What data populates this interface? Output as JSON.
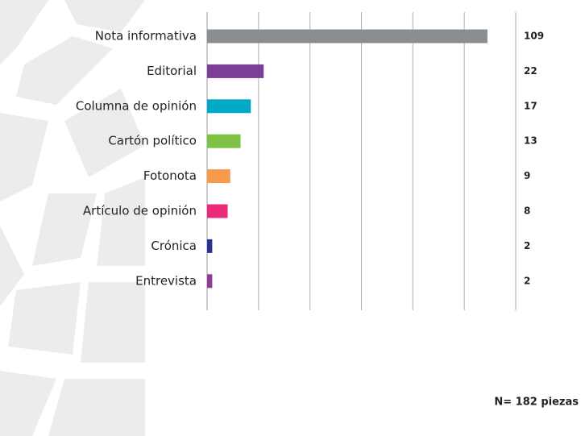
{
  "chart_data": {
    "type": "bar",
    "orientation": "horizontal",
    "categories": [
      "Nota informativa",
      "Editorial",
      "Columna de opinión",
      "Cartón político",
      "Fotonota",
      "Artículo de opinión",
      "Crónica",
      "Entrevista"
    ],
    "values": [
      109,
      22,
      17,
      13,
      9,
      8,
      2,
      2
    ],
    "colors": [
      "#8a8d91",
      "#7b3f98",
      "#00a9c6",
      "#7dc242",
      "#f79a4b",
      "#ec2a7b",
      "#2e3192",
      "#8e3c96"
    ],
    "xlim": [
      0,
      120
    ],
    "xticks": [
      0,
      20,
      40,
      60,
      80,
      100,
      120
    ],
    "tick_labels": false,
    "grid": true,
    "note": "N= 182 piezas"
  }
}
